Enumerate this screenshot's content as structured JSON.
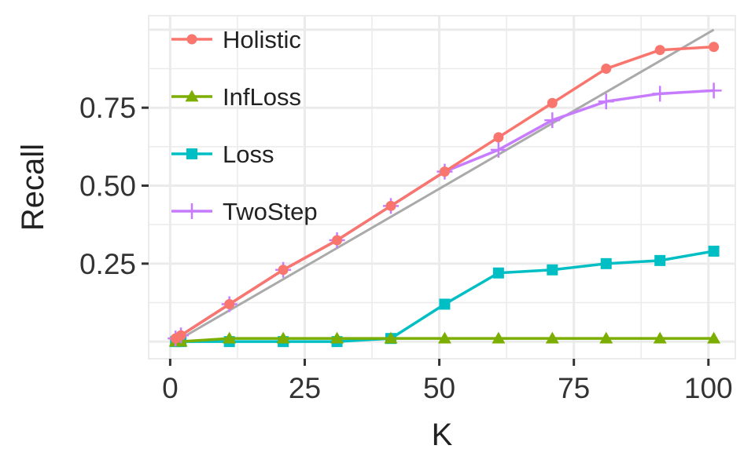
{
  "chart_data": {
    "type": "line",
    "xlabel": "K",
    "ylabel": "Recall",
    "xlim": [
      -4,
      105
    ],
    "ylim": [
      -0.055,
      1.045
    ],
    "x_ticks": [
      0,
      25,
      50,
      75,
      100
    ],
    "y_ticks": [
      0.25,
      0.5,
      0.75
    ],
    "x_tick_labels": [
      "0",
      "25",
      "50",
      "75",
      "100"
    ],
    "y_tick_labels": [
      "0.25",
      "0.50",
      "0.75"
    ],
    "grid": true,
    "background": "#ffffff",
    "grid_color": "#ebebeb",
    "legend_position": "top-left",
    "series": [
      {
        "name": "Holistic",
        "color": "#F8766D",
        "marker": "circle",
        "x": [
          1,
          2,
          11,
          21,
          31,
          41,
          51,
          61,
          71,
          81,
          91,
          101
        ],
        "y": [
          0.01,
          0.02,
          0.12,
          0.23,
          0.325,
          0.435,
          0.545,
          0.655,
          0.765,
          0.875,
          0.935,
          0.945
        ]
      },
      {
        "name": "InfLoss",
        "color": "#7CAE00",
        "marker": "triangle",
        "x": [
          1,
          2,
          11,
          21,
          31,
          41,
          51,
          61,
          71,
          81,
          91,
          101
        ],
        "y": [
          0.0,
          0.0,
          0.01,
          0.01,
          0.01,
          0.01,
          0.01,
          0.01,
          0.01,
          0.01,
          0.01,
          0.01
        ]
      },
      {
        "name": "Loss",
        "color": "#00BFC4",
        "marker": "square",
        "x": [
          1,
          2,
          11,
          21,
          31,
          41,
          51,
          61,
          71,
          81,
          91,
          101
        ],
        "y": [
          0.0,
          0.0,
          0.0,
          0.0,
          0.0,
          0.01,
          0.12,
          0.22,
          0.23,
          0.25,
          0.26,
          0.29
        ]
      },
      {
        "name": "TwoStep",
        "color": "#C77CFF",
        "marker": "plus",
        "x": [
          1,
          2,
          11,
          21,
          31,
          41,
          51,
          61,
          71,
          81,
          91,
          101
        ],
        "y": [
          0.01,
          0.02,
          0.12,
          0.23,
          0.325,
          0.435,
          0.545,
          0.615,
          0.71,
          0.77,
          0.795,
          0.805
        ]
      }
    ],
    "reference_line": {
      "color": "#aaaaaa",
      "x": [
        1,
        101
      ],
      "y": [
        0.0,
        1.0
      ]
    }
  }
}
